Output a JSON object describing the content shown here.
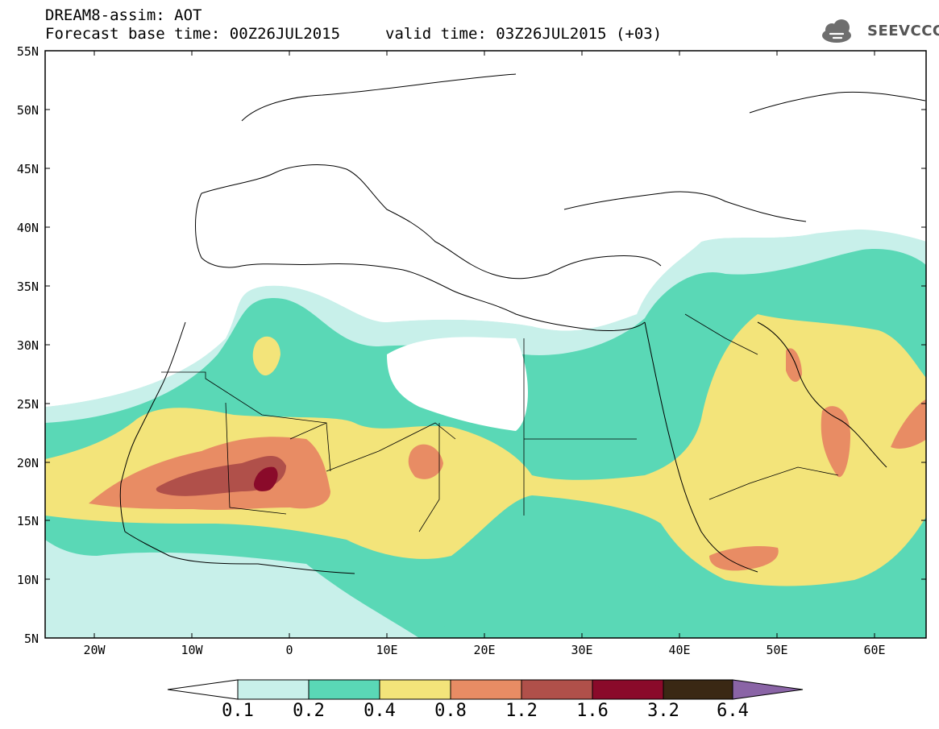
{
  "header": {
    "title": "DREAM8-assim: AOT",
    "base_time": "Forecast base time: 00Z26JUL2015",
    "valid_time": "valid time: 03Z26JUL2015 (+03)"
  },
  "logo": {
    "text": "SEEVCCC",
    "icon": "cloud-icon"
  },
  "axes": {
    "lat_labels": [
      "55N",
      "50N",
      "45N",
      "40N",
      "35N",
      "30N",
      "25N",
      "20N",
      "15N",
      "10N",
      "5N"
    ],
    "lon_labels": [
      "20W",
      "10W",
      "0",
      "10E",
      "20E",
      "30E",
      "40E",
      "50E",
      "60E"
    ]
  },
  "colorbar": {
    "labels": [
      "0.1",
      "0.2",
      "0.4",
      "0.8",
      "1.2",
      "1.6",
      "3.2",
      "6.4"
    ],
    "colors": [
      "#ffffff",
      "#c8f0ea",
      "#5ad8b6",
      "#f3e47a",
      "#e88c64",
      "#b0504a",
      "#8a0a2a",
      "#3a2814",
      "#8a64a6"
    ]
  }
}
